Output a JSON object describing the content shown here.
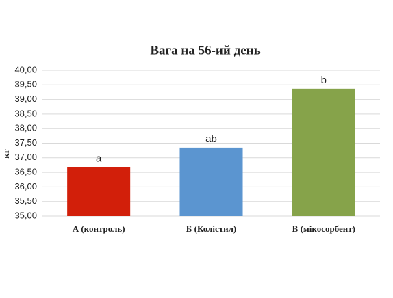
{
  "chart_data": {
    "type": "bar",
    "title": "Вага на 56-ий день",
    "y_label": "кг",
    "categories": [
      "А (контроль)",
      "Б (Колістил)",
      "В (мікосорбент)"
    ],
    "values": [
      36.68,
      37.35,
      39.37
    ],
    "colors": [
      "#d21f0a",
      "#5b95d0",
      "#86a34a"
    ],
    "annotations": [
      "a",
      "ab",
      "b"
    ],
    "ylim": [
      35,
      40
    ],
    "yticks": [
      {
        "value": 35,
        "label": "35,00"
      },
      {
        "value": 35.5,
        "label": "35,50"
      },
      {
        "value": 36,
        "label": "36,00"
      },
      {
        "value": 36.5,
        "label": "36,50"
      },
      {
        "value": 37,
        "label": "37,00"
      },
      {
        "value": 37.5,
        "label": "37,50"
      },
      {
        "value": 38,
        "label": "38,00"
      },
      {
        "value": 38.5,
        "label": "38,50"
      },
      {
        "value": 39,
        "label": "39,00"
      },
      {
        "value": 39.5,
        "label": "39,50"
      },
      {
        "value": 40,
        "label": "40,00"
      }
    ],
    "grid": true
  }
}
